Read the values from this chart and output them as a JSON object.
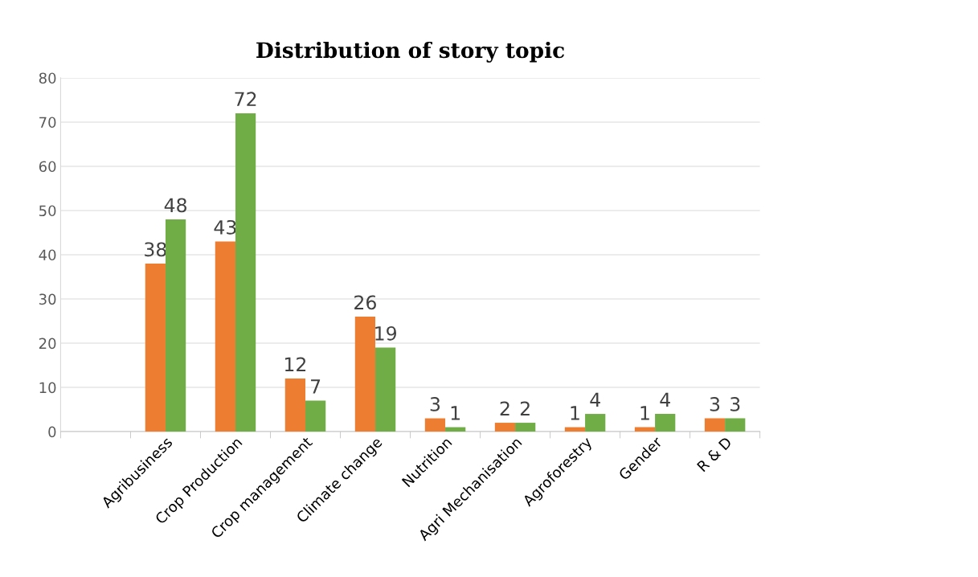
{
  "chart_data": {
    "type": "bar",
    "title": "Distribution of story topic",
    "categories": [
      null,
      "Agribusiness",
      "Crop Production",
      "Crop management",
      "Climate change",
      "Nutrition",
      "Agri Mechanisation",
      "Agroforestry",
      "Gender",
      "R & D"
    ],
    "series": [
      {
        "color": "#ed7d31",
        "values": [
          null,
          38,
          43,
          12,
          26,
          3,
          2,
          1,
          1,
          3
        ]
      },
      {
        "color": "#70ad47",
        "values": [
          null,
          48,
          72,
          7,
          19,
          1,
          2,
          4,
          4,
          3
        ]
      }
    ],
    "ylim": [
      0,
      80
    ],
    "yticks": [
      0,
      10,
      20,
      30,
      40,
      50,
      60,
      70,
      80
    ],
    "grid": "y",
    "data_labels": true
  }
}
